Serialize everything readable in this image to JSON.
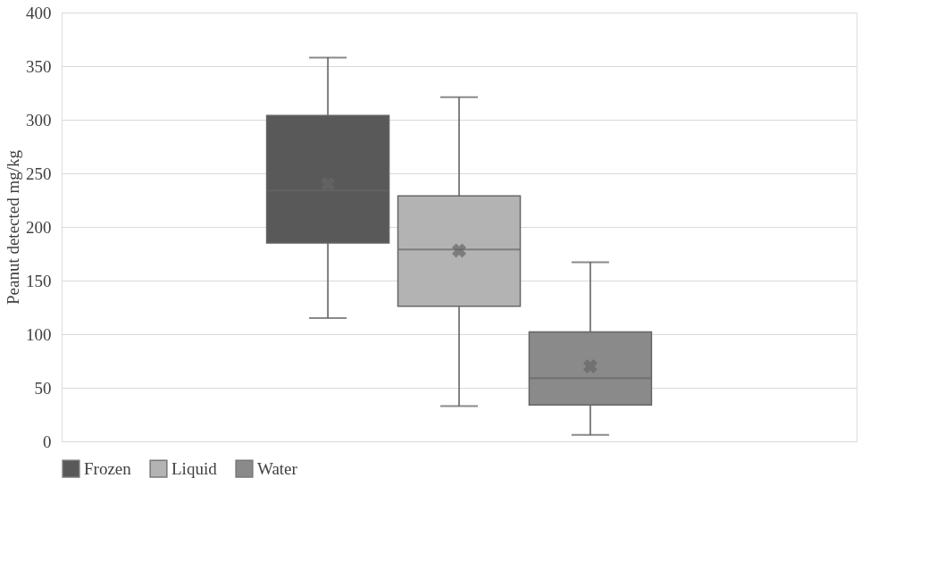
{
  "chart_data": {
    "type": "box",
    "ylabel": "Peanut detected mg/kg",
    "categories": [
      null
    ],
    "ylim": [
      0,
      400
    ],
    "yticks": [
      0,
      50,
      100,
      150,
      200,
      250,
      300,
      350,
      400
    ],
    "grid": "y",
    "legend": "bottom",
    "series": [
      {
        "name": "Frozen",
        "color": "#595959",
        "boxes": [
          {
            "low": 115,
            "q1": 185,
            "median": 234,
            "q3": 304,
            "high": 358,
            "mean": 240
          }
        ]
      },
      {
        "name": "Liquid",
        "color": "#b3b3b3",
        "boxes": [
          {
            "low": 33,
            "q1": 126,
            "median": 179,
            "q3": 229,
            "high": 321,
            "mean": 178
          }
        ]
      },
      {
        "name": "Water",
        "color": "#8a8a8a",
        "boxes": [
          {
            "low": 6,
            "q1": 34,
            "median": 59,
            "q3": 102,
            "high": 167,
            "mean": 70
          }
        ]
      }
    ]
  }
}
